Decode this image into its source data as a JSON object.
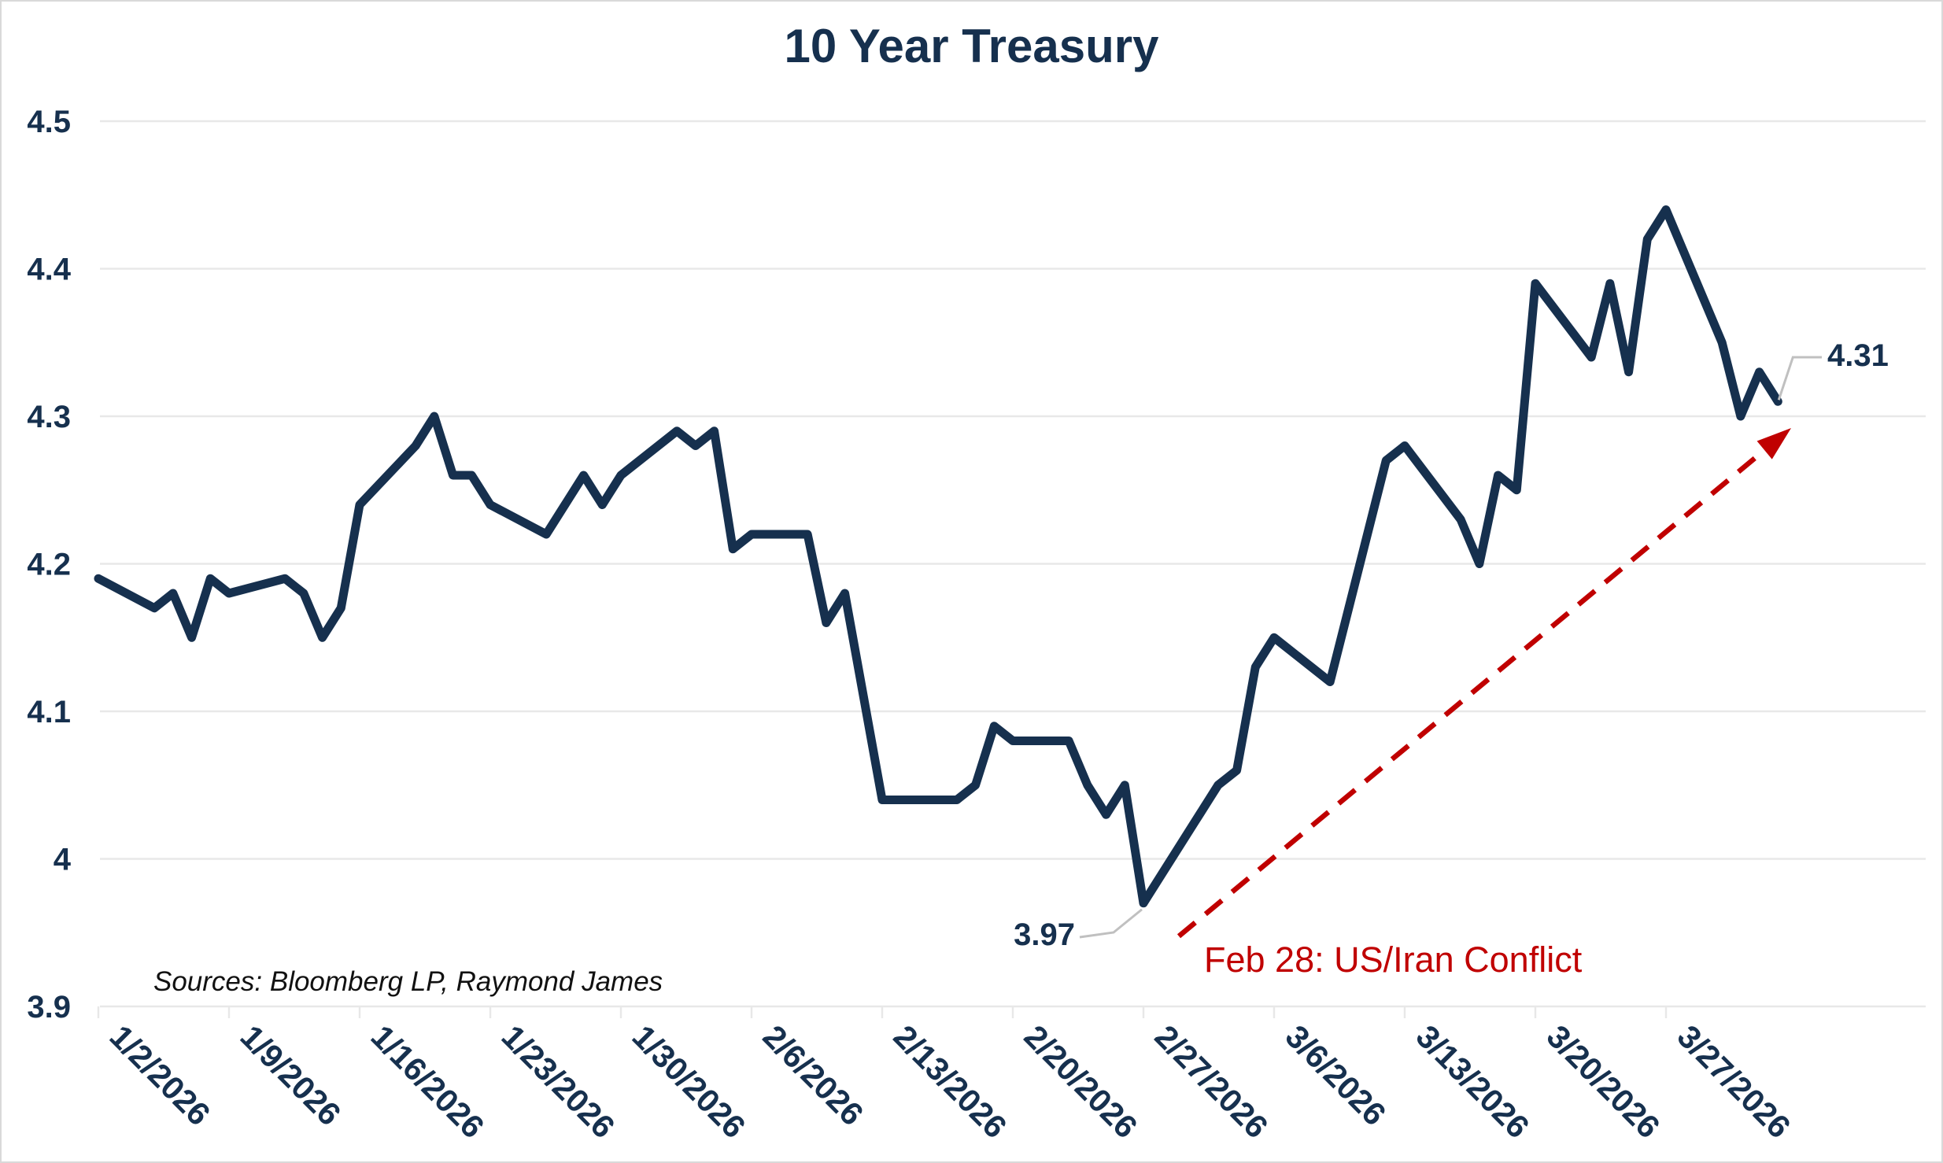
{
  "title": "10 Year Treasury",
  "source_note": "Sources: Bloomberg LP, Raymond James",
  "annotations": {
    "min_point": {
      "label": "3.97",
      "date": "2/27/2026"
    },
    "last_point": {
      "label": "4.31",
      "date": "4/2/2026"
    },
    "event": {
      "label": "Feb 28: US/Iran Conflict",
      "style": "red dashed arrow from the 2/27 low pointing to the final data point"
    }
  },
  "colors": {
    "line": "#16304e",
    "title_text": "#16304e",
    "axis_text": "#16304e",
    "annotation_red": "#c00000",
    "gridline": "#e8e8e8",
    "leader_line": "#c0c0c0",
    "source_text": "#111111",
    "background": "#ffffff",
    "border": "#d9d9d9"
  },
  "chart_data": {
    "type": "line",
    "title": "10 Year Treasury",
    "xlabel": "",
    "ylabel": "",
    "ylim": [
      3.9,
      4.5
    ],
    "grid": "horizontal",
    "legend": "none",
    "yticks": [
      "4.5",
      "4.4",
      "4.3",
      "4.2",
      "4.1",
      "4",
      "3.9"
    ],
    "ytick_values": [
      4.5,
      4.4,
      4.3,
      4.2,
      4.1,
      4.0,
      3.9
    ],
    "xticks": [
      "1/2/2026",
      "1/9/2026",
      "1/16/2026",
      "1/23/2026",
      "1/30/2026",
      "2/6/2026",
      "2/13/2026",
      "2/20/2026",
      "2/27/2026",
      "3/6/2026",
      "3/13/2026",
      "3/20/2026",
      "3/27/2026"
    ],
    "series": [
      {
        "name": "10 Year Treasury Yield",
        "dates": [
          "1/2/2026",
          "1/5/2026",
          "1/6/2026",
          "1/7/2026",
          "1/8/2026",
          "1/9/2026",
          "1/12/2026",
          "1/13/2026",
          "1/14/2026",
          "1/15/2026",
          "1/16/2026",
          "1/19/2026",
          "1/20/2026",
          "1/21/2026",
          "1/22/2026",
          "1/23/2026",
          "1/26/2026",
          "1/27/2026",
          "1/28/2026",
          "1/29/2026",
          "1/30/2026",
          "2/2/2026",
          "2/3/2026",
          "2/4/2026",
          "2/5/2026",
          "2/6/2026",
          "2/9/2026",
          "2/10/2026",
          "2/11/2026",
          "2/12/2026",
          "2/13/2026",
          "2/16/2026",
          "2/17/2026",
          "2/18/2026",
          "2/19/2026",
          "2/20/2026",
          "2/23/2026",
          "2/24/2026",
          "2/25/2026",
          "2/26/2026",
          "2/27/2026",
          "3/2/2026",
          "3/3/2026",
          "3/4/2026",
          "3/5/2026",
          "3/6/2026",
          "3/9/2026",
          "3/10/2026",
          "3/11/2026",
          "3/12/2026",
          "3/13/2026",
          "3/16/2026",
          "3/17/2026",
          "3/18/2026",
          "3/19/2026",
          "3/20/2026",
          "3/23/2026",
          "3/24/2026",
          "3/25/2026",
          "3/26/2026",
          "3/27/2026",
          "3/30/2026",
          "3/31/2026",
          "4/1/2026",
          "4/2/2026"
        ],
        "values": [
          4.19,
          4.17,
          4.18,
          4.15,
          4.19,
          4.18,
          4.19,
          4.18,
          4.15,
          4.17,
          4.24,
          4.28,
          4.3,
          4.26,
          4.26,
          4.24,
          4.22,
          4.24,
          4.26,
          4.24,
          4.26,
          4.29,
          4.28,
          4.29,
          4.21,
          4.22,
          4.22,
          4.16,
          4.18,
          4.11,
          4.04,
          4.04,
          4.04,
          4.05,
          4.09,
          4.08,
          4.08,
          4.05,
          4.03,
          4.05,
          3.97,
          4.03,
          4.05,
          4.06,
          4.13,
          4.15,
          4.12,
          4.17,
          4.22,
          4.27,
          4.28,
          4.23,
          4.2,
          4.26,
          4.25,
          4.39,
          4.34,
          4.39,
          4.33,
          4.42,
          4.44,
          4.35,
          4.3,
          4.33,
          4.31
        ]
      }
    ]
  }
}
